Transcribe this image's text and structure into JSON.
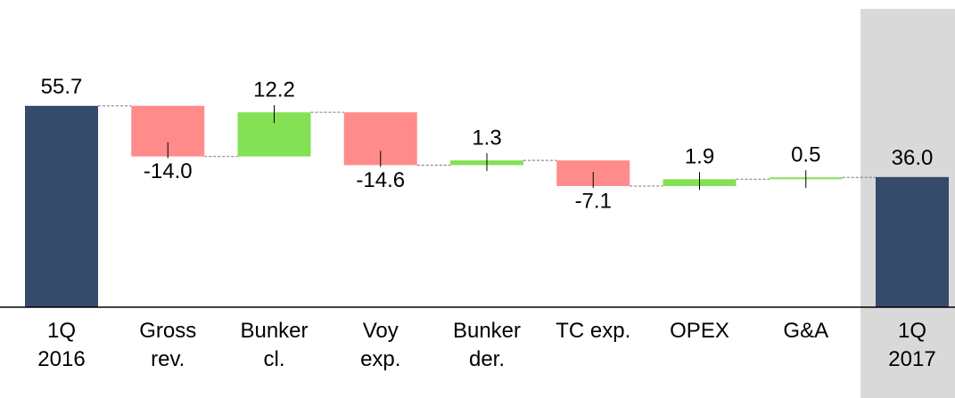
{
  "chart_data": {
    "type": "waterfall",
    "categories": [
      "1Q\n2016",
      "Gross\nrev.",
      "Bunker\ncl.",
      "Voy\nexp.",
      "Bunker\nder.",
      "TC exp.",
      "OPEX",
      "G&A",
      "1Q\n2017"
    ],
    "values": [
      55.7,
      -14.0,
      12.2,
      -14.6,
      1.3,
      -7.1,
      1.9,
      0.5,
      36.0
    ],
    "value_labels": [
      "55.7",
      "-14.0",
      "12.2",
      "-14.6",
      "1.3",
      "-7.1",
      "1.9",
      "0.5",
      "36.0"
    ],
    "total_color": "#364a6b",
    "increase_color": "#84e055",
    "decrease_color": "#ff8c8a",
    "highlight_color": "#d9d9d9"
  }
}
